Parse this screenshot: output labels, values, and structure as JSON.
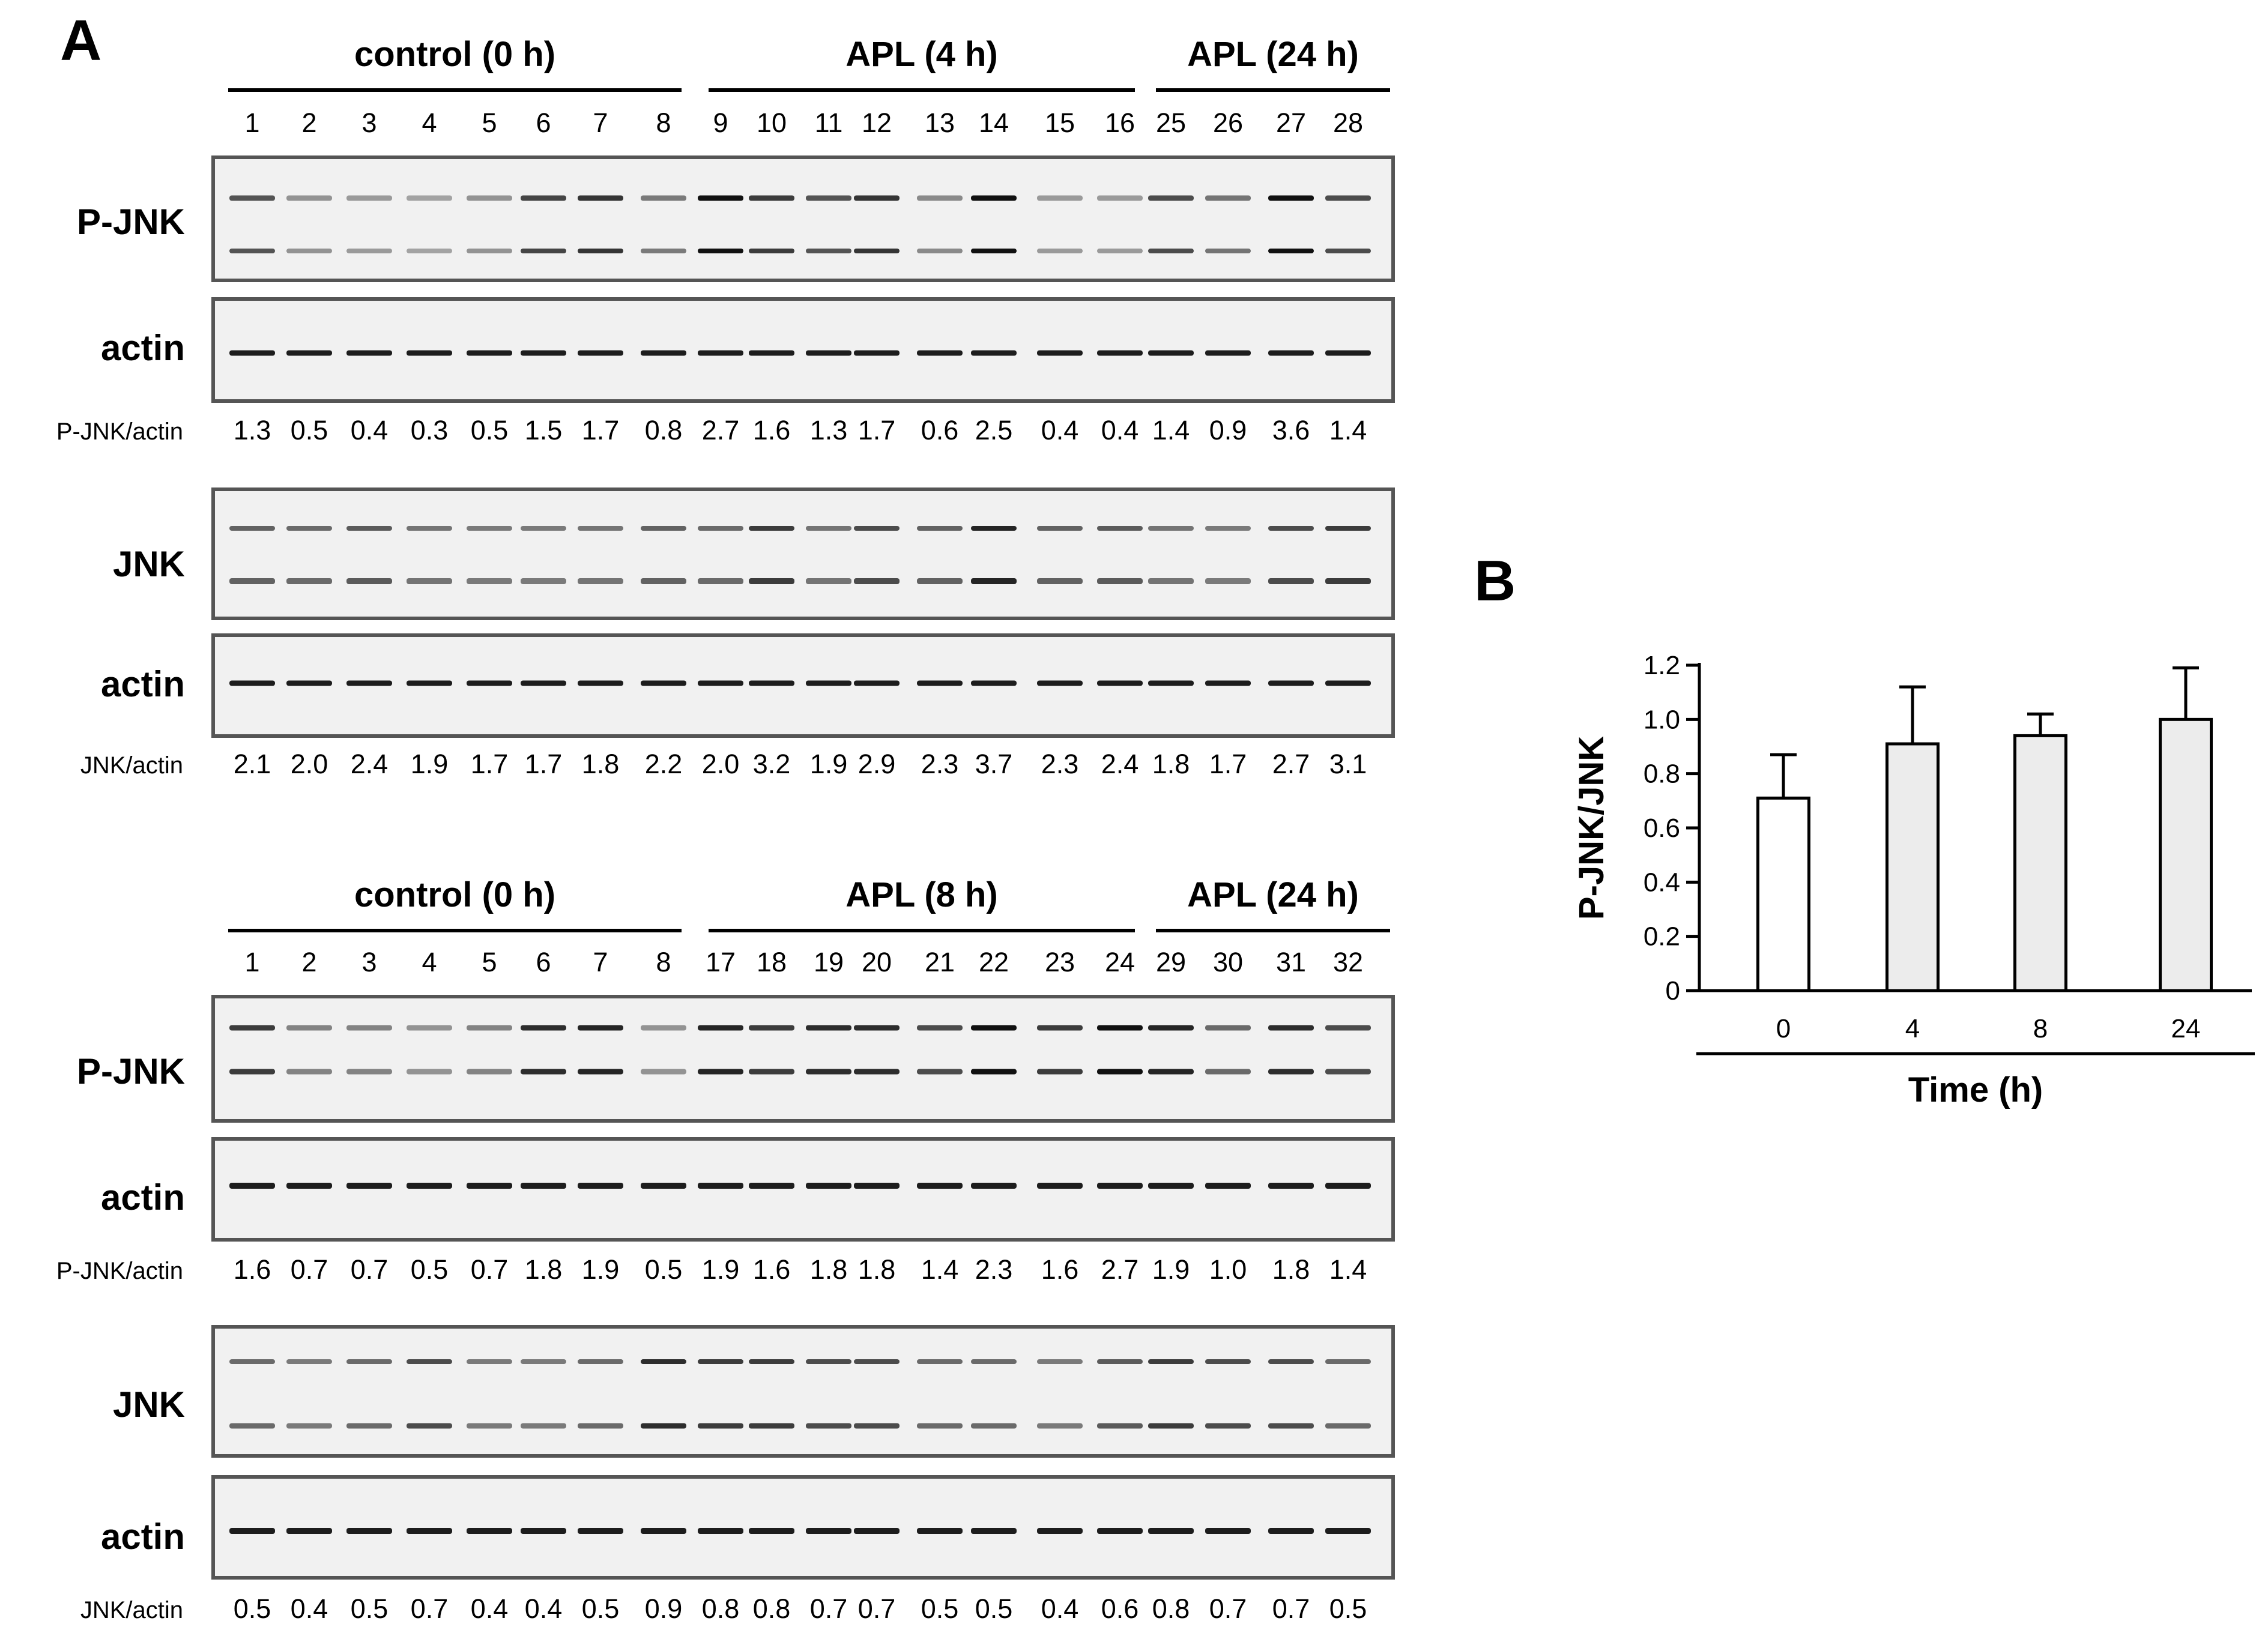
{
  "panels": {
    "a": "A",
    "b": "B"
  },
  "blots": [
    {
      "groups": [
        "control (0 h)",
        "APL (4 h)",
        "APL (24 h)"
      ],
      "lanes": [
        "1",
        "2",
        "3",
        "4",
        "5",
        "6",
        "7",
        "8",
        "9",
        "10",
        "11",
        "12",
        "13",
        "14",
        "15",
        "16",
        "25",
        "26",
        "27",
        "28"
      ],
      "pjnk_label": "P-JNK",
      "actin_label": "actin",
      "pjnk_ratio_label": "P-JNK/actin",
      "pjnk_ratios": [
        "1.3",
        "0.5",
        "0.4",
        "0.3",
        "0.5",
        "1.5",
        "1.7",
        "0.8",
        "2.7",
        "1.6",
        "1.3",
        "1.7",
        "0.6",
        "2.5",
        "0.4",
        "0.4",
        "1.4",
        "0.9",
        "3.6",
        "1.4"
      ],
      "jnk_label": "JNK",
      "actin2_label": "actin",
      "jnk_ratio_label": "JNK/actin",
      "jnk_ratios": [
        "2.1",
        "2.0",
        "2.4",
        "1.9",
        "1.7",
        "1.7",
        "1.8",
        "2.2",
        "2.0",
        "3.2",
        "1.9",
        "2.9",
        "2.3",
        "3.7",
        "2.3",
        "2.4",
        "1.8",
        "1.7",
        "2.7",
        "3.1"
      ]
    },
    {
      "groups": [
        "control (0 h)",
        "APL (8 h)",
        "APL (24 h)"
      ],
      "lanes": [
        "1",
        "2",
        "3",
        "4",
        "5",
        "6",
        "7",
        "8",
        "17",
        "18",
        "19",
        "20",
        "21",
        "22",
        "23",
        "24",
        "29",
        "30",
        "31",
        "32"
      ],
      "pjnk_label": "P-JNK",
      "actin_label": "actin",
      "pjnk_ratio_label": "P-JNK/actin",
      "pjnk_ratios": [
        "1.6",
        "0.7",
        "0.7",
        "0.5",
        "0.7",
        "1.8",
        "1.9",
        "0.5",
        "1.9",
        "1.6",
        "1.8",
        "1.8",
        "1.4",
        "2.3",
        "1.6",
        "2.7",
        "1.9",
        "1.0",
        "1.8",
        "1.4"
      ],
      "jnk_label": "JNK",
      "actin2_label": "actin",
      "jnk_ratio_label": "JNK/actin",
      "jnk_ratios": [
        "0.5",
        "0.4",
        "0.5",
        "0.7",
        "0.4",
        "0.4",
        "0.5",
        "0.9",
        "0.8",
        "0.8",
        "0.7",
        "0.7",
        "0.5",
        "0.5",
        "0.4",
        "0.6",
        "0.8",
        "0.7",
        "0.7",
        "0.5"
      ]
    }
  ],
  "chart_data": {
    "type": "bar",
    "categories": [
      "0",
      "4",
      "8",
      "24"
    ],
    "values": [
      0.71,
      0.91,
      0.94,
      1.0
    ],
    "errors": [
      0.16,
      0.21,
      0.08,
      0.19
    ],
    "xlabel": "Time (h)",
    "ylabel": "P-JNK/JNK",
    "ylim": [
      0,
      1.2
    ],
    "yticks": [
      "0",
      "0.2",
      "0.4",
      "0.6",
      "0.8",
      "1.0",
      "1.2"
    ],
    "bar_colors": [
      "#ffffff",
      "#ececec",
      "#ececec",
      "#ececec"
    ],
    "grid": false
  }
}
